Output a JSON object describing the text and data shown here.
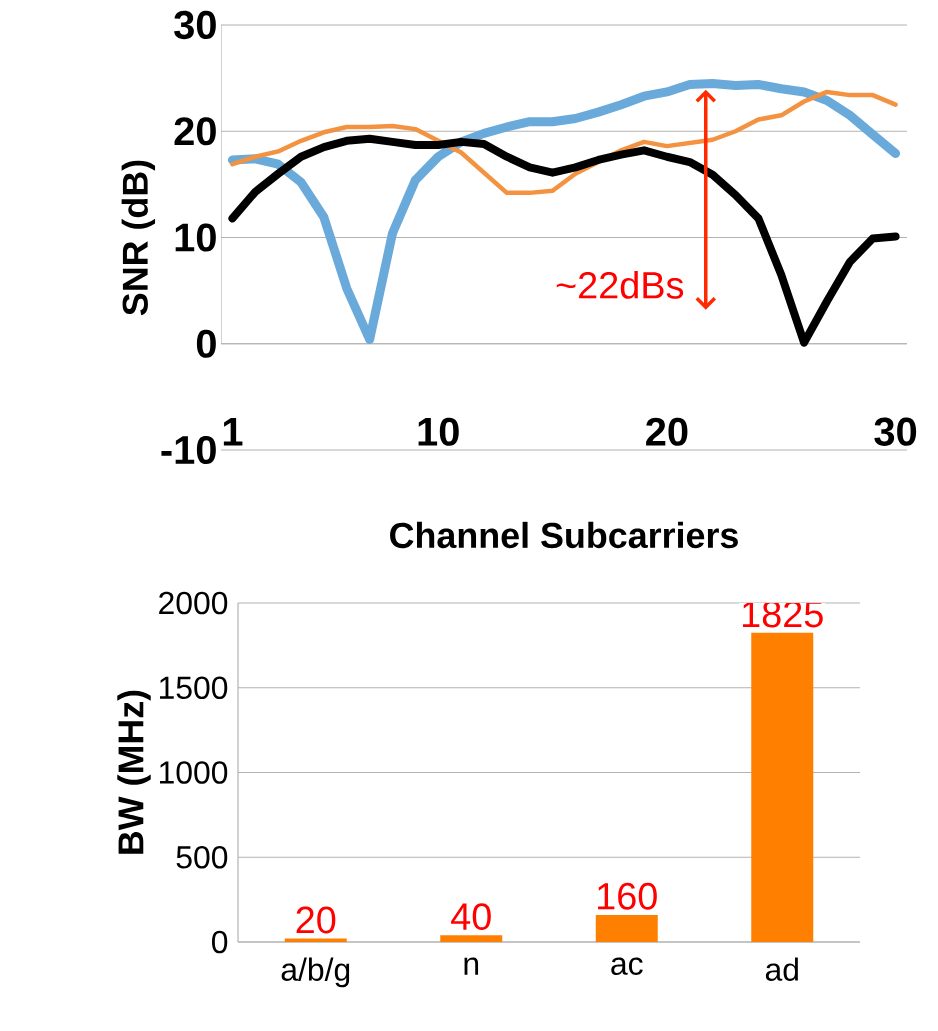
{
  "chart_data": [
    {
      "type": "line",
      "xlabel": "Channel Subcarriers",
      "ylabel": "SNR (dB)",
      "x": [
        1,
        2,
        3,
        4,
        5,
        6,
        7,
        8,
        9,
        10,
        11,
        12,
        13,
        14,
        15,
        16,
        17,
        18,
        19,
        20,
        21,
        22,
        23,
        24,
        25,
        26,
        27,
        28,
        29,
        30
      ],
      "series": [
        {
          "color": "#6aaadb",
          "values": [
            17.3,
            17.4,
            16.9,
            15.2,
            11.9,
            5.2,
            0.4,
            10.4,
            15.4,
            17.6,
            19.0,
            19.8,
            20.4,
            20.9,
            20.9,
            21.2,
            21.8,
            22.5,
            23.3,
            23.7,
            24.4,
            24.5,
            24.3,
            24.4,
            24.0,
            23.7,
            22.9,
            21.5,
            19.7,
            17.9
          ]
        },
        {
          "color": "#f39241",
          "values": [
            16.9,
            17.6,
            18.1,
            19.1,
            19.9,
            20.4,
            20.4,
            20.5,
            20.2,
            19.1,
            18.0,
            16.1,
            14.2,
            14.2,
            14.4,
            16.0,
            17.1,
            18.2,
            19.0,
            18.6,
            18.9,
            19.2,
            20.0,
            21.1,
            21.5,
            22.8,
            23.7,
            23.4,
            23.4,
            22.5
          ]
        },
        {
          "color": "#000000",
          "values": [
            11.8,
            14.3,
            16.0,
            17.6,
            18.5,
            19.1,
            19.3,
            19.0,
            18.7,
            18.7,
            19.0,
            18.8,
            17.6,
            16.6,
            16.1,
            16.6,
            17.3,
            17.8,
            18.2,
            17.6,
            17.1,
            15.9,
            14.0,
            11.8,
            6.5,
            0.1,
            4.0,
            7.7,
            9.9,
            10.1
          ]
        }
      ],
      "xlim": [
        0.5,
        30.5
      ],
      "xticks": [
        1,
        10,
        20,
        30
      ],
      "ylim": [
        -10,
        30
      ],
      "yticks": [
        -10,
        0,
        10,
        20,
        30
      ],
      "grid": "y",
      "marker": "none",
      "line_style": "solid",
      "annotations": [
        {
          "text": "~22dBs",
          "x": 21.7,
          "y": 23.9
        }
      ]
    },
    {
      "type": "bar",
      "ylabel": "BW (MHz)",
      "categories": [
        "a/b/g",
        "n",
        "ac",
        "ad"
      ],
      "values": [
        20,
        40,
        160,
        1825
      ],
      "color": "#ff8000",
      "ylim": [
        0,
        2000
      ],
      "yticks": [
        0,
        500,
        1000,
        1500,
        2000
      ],
      "grid": "y",
      "data_labels": true
    }
  ]
}
